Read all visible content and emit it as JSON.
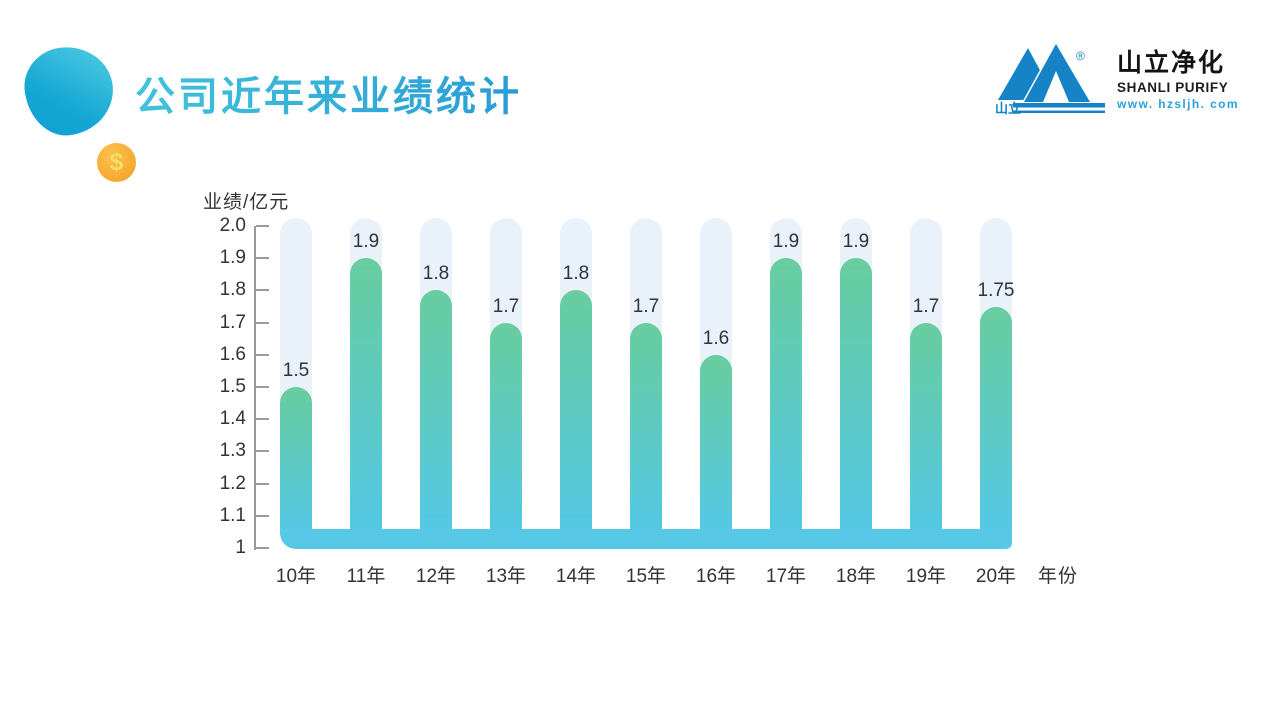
{
  "slide": {
    "title": "公司近年来业绩统计",
    "title_color_start": "#41c3da",
    "title_color_end": "#2a9cd5"
  },
  "decor": {
    "coin_symbol": "$"
  },
  "logo": {
    "mark_text": "山立",
    "registered": "®",
    "company_cn": "山立净化",
    "company_en": "SHANLI PURIFY",
    "website": "www. hzsljh. com",
    "brand_color": "#1583c6",
    "url_color": "#2aa0da"
  },
  "chart_data": {
    "type": "bar",
    "title": "",
    "ylabel": "业绩/亿元",
    "xlabel": "年份",
    "categories": [
      "10年",
      "11年",
      "12年",
      "13年",
      "14年",
      "15年",
      "16年",
      "17年",
      "18年",
      "19年",
      "20年"
    ],
    "values": [
      1.5,
      1.9,
      1.8,
      1.7,
      1.8,
      1.7,
      1.6,
      1.9,
      1.9,
      1.7,
      1.75
    ],
    "value_labels": [
      "1.5",
      "1.9",
      "1.8",
      "1.7",
      "1.8",
      "1.7",
      "1.6",
      "1.9",
      "1.9",
      "1.7",
      "1.75"
    ],
    "ylim": [
      1,
      2
    ],
    "ytick_labels": [
      "2.0",
      "1.9",
      "1.8",
      "1.7",
      "1.6",
      "1.5",
      "1.4",
      "1.3",
      "1.2",
      "1.1",
      "1"
    ],
    "ytick_values": [
      2.0,
      1.9,
      1.8,
      1.7,
      1.6,
      1.5,
      1.4,
      1.3,
      1.2,
      1.1,
      1
    ],
    "grid": false,
    "legend": null,
    "colors": {
      "bar_top": "#68cd9e",
      "bar_bottom": "#54c8e5",
      "track": "#e9f2fb",
      "baseline_band": "#57c9e6",
      "axis": "#9a9a9a",
      "label": "#333333"
    }
  }
}
